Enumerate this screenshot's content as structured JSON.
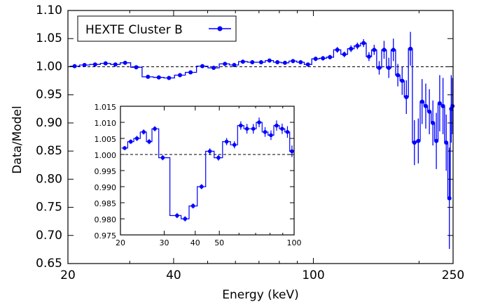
{
  "chart_data": [
    {
      "type": "line",
      "panel": "main",
      "xlabel": "Energy (keV)",
      "ylabel": "Data/Model",
      "xscale": "log",
      "xlim": [
        20,
        250
      ],
      "ylim": [
        0.65,
        1.1
      ],
      "xticks": [
        20,
        40,
        100,
        250
      ],
      "xtick_labels": [
        "20",
        "40",
        "100",
        "250"
      ],
      "yticks": [
        0.65,
        0.7,
        0.75,
        0.8,
        0.85,
        0.9,
        0.95,
        1.0,
        1.05,
        1.1
      ],
      "ytick_labels": [
        "0.65",
        "0.70",
        "0.75",
        "0.80",
        "0.85",
        "0.90",
        "0.95",
        "1.00",
        "1.05",
        "1.10"
      ],
      "reference_line": 1.0,
      "legend": {
        "label": "HEXTE Cluster B",
        "placement": "top-left"
      },
      "color": "#0000ff",
      "series": [
        {
          "name": "HEXTE Cluster B",
          "points": [
            [
              20.9,
              1.001,
              0.002
            ],
            [
              22.3,
              1.003,
              0.002
            ],
            [
              23.9,
              1.004,
              0.002
            ],
            [
              25.6,
              1.006,
              0.002
            ],
            [
              27.3,
              1.004,
              0.002
            ],
            [
              29.1,
              1.007,
              0.002
            ],
            [
              31.3,
              0.999,
              0.002
            ],
            [
              33.8,
              0.982,
              0.002
            ],
            [
              36.3,
              0.981,
              0.002
            ],
            [
              38.8,
              0.98,
              0.002
            ],
            [
              41.7,
              0.985,
              0.002
            ],
            [
              44.7,
              0.99,
              0.002
            ],
            [
              48.3,
              1.001,
              0.002
            ],
            [
              52.0,
              0.998,
              0.002
            ],
            [
              56.0,
              1.005,
              0.003
            ],
            [
              59.5,
              1.003,
              0.003
            ],
            [
              63.0,
              1.009,
              0.003
            ],
            [
              67.0,
              1.008,
              0.003
            ],
            [
              71.0,
              1.008,
              0.003
            ],
            [
              75.0,
              1.011,
              0.003
            ],
            [
              79.0,
              1.008,
              0.003
            ],
            [
              83.0,
              1.007,
              0.003
            ],
            [
              87.5,
              1.01,
              0.003
            ],
            [
              92.0,
              1.008,
              0.003
            ],
            [
              96.5,
              1.004,
              0.003
            ],
            [
              101.5,
              1.014,
              0.004
            ],
            [
              106.5,
              1.015,
              0.004
            ],
            [
              111.5,
              1.017,
              0.004
            ],
            [
              117.0,
              1.03,
              0.005
            ],
            [
              122.5,
              1.022,
              0.005
            ],
            [
              128.0,
              1.032,
              0.006
            ],
            [
              133.5,
              1.037,
              0.006
            ],
            [
              139.0,
              1.042,
              0.007
            ],
            [
              144.0,
              1.018,
              0.008
            ],
            [
              149.0,
              1.03,
              0.009
            ],
            [
              154.0,
              0.998,
              0.012
            ],
            [
              159.0,
              1.03,
              0.016
            ],
            [
              164.0,
              0.998,
              0.018
            ],
            [
              169.0,
              1.03,
              0.02
            ],
            [
              174.0,
              0.985,
              0.02
            ],
            [
              179.0,
              0.975,
              0.025
            ],
            [
              184.0,
              0.946,
              0.03
            ],
            [
              189.0,
              1.032,
              0.03
            ],
            [
              194.0,
              0.865,
              0.04
            ],
            [
              199.0,
              0.868,
              0.04
            ],
            [
              204.0,
              0.938,
              0.04
            ],
            [
              209.0,
              0.93,
              0.04
            ],
            [
              214.0,
              0.92,
              0.04
            ],
            [
              219.0,
              0.9,
              0.04
            ],
            [
              224.0,
              0.868,
              0.05
            ],
            [
              229.0,
              0.935,
              0.05
            ],
            [
              234.0,
              0.93,
              0.05
            ],
            [
              239.0,
              0.865,
              0.05
            ],
            [
              244.0,
              0.766,
              0.09
            ],
            [
              247.0,
              0.925,
              0.06
            ],
            [
              249.0,
              0.93,
              0.05
            ]
          ]
        }
      ]
    },
    {
      "type": "line",
      "panel": "inset",
      "xscale": "log",
      "xlim": [
        20,
        100
      ],
      "ylim": [
        0.975,
        1.015
      ],
      "xticks": [
        20,
        30,
        40,
        50,
        100
      ],
      "xtick_labels": [
        "20",
        "30",
        "40",
        "50",
        "100"
      ],
      "yticks": [
        0.975,
        0.98,
        0.985,
        0.99,
        0.995,
        1.0,
        1.005,
        1.01,
        1.015
      ],
      "ytick_labels": [
        "0.975",
        "0.980",
        "0.985",
        "0.990",
        "0.995",
        "1.000",
        "1.005",
        "1.010",
        "1.015"
      ],
      "reference_line": 1.0,
      "color": "#0000ff",
      "series": [
        {
          "name": "HEXTE Cluster B",
          "points": [
            [
              20.8,
              1.002,
              0.0006
            ],
            [
              22.0,
              1.004,
              0.0007
            ],
            [
              23.3,
              1.005,
              0.0008
            ],
            [
              24.8,
              1.007,
              0.0008
            ],
            [
              26.1,
              1.004,
              0.0008
            ],
            [
              27.5,
              1.008,
              0.0008
            ],
            [
              29.6,
              0.999,
              0.0008
            ],
            [
              33.8,
              0.981,
              0.0008
            ],
            [
              36.4,
              0.98,
              0.0008
            ],
            [
              39.2,
              0.984,
              0.0008
            ],
            [
              42.4,
              0.99,
              0.0008
            ],
            [
              45.8,
              1.001,
              0.0009
            ],
            [
              49.6,
              0.999,
              0.0009
            ],
            [
              53.5,
              1.004,
              0.0011
            ],
            [
              57.5,
              1.003,
              0.0011
            ],
            [
              61.0,
              1.009,
              0.0013
            ],
            [
              64.6,
              1.008,
              0.0015
            ],
            [
              68.5,
              1.008,
              0.0015
            ],
            [
              72.3,
              1.01,
              0.0015
            ],
            [
              76.4,
              1.007,
              0.0015
            ],
            [
              80.7,
              1.006,
              0.0015
            ],
            [
              85.0,
              1.009,
              0.0016
            ],
            [
              89.5,
              1.008,
              0.0016
            ],
            [
              94.0,
              1.007,
              0.0018
            ],
            [
              98.0,
              1.001,
              0.0018
            ]
          ]
        }
      ]
    }
  ]
}
